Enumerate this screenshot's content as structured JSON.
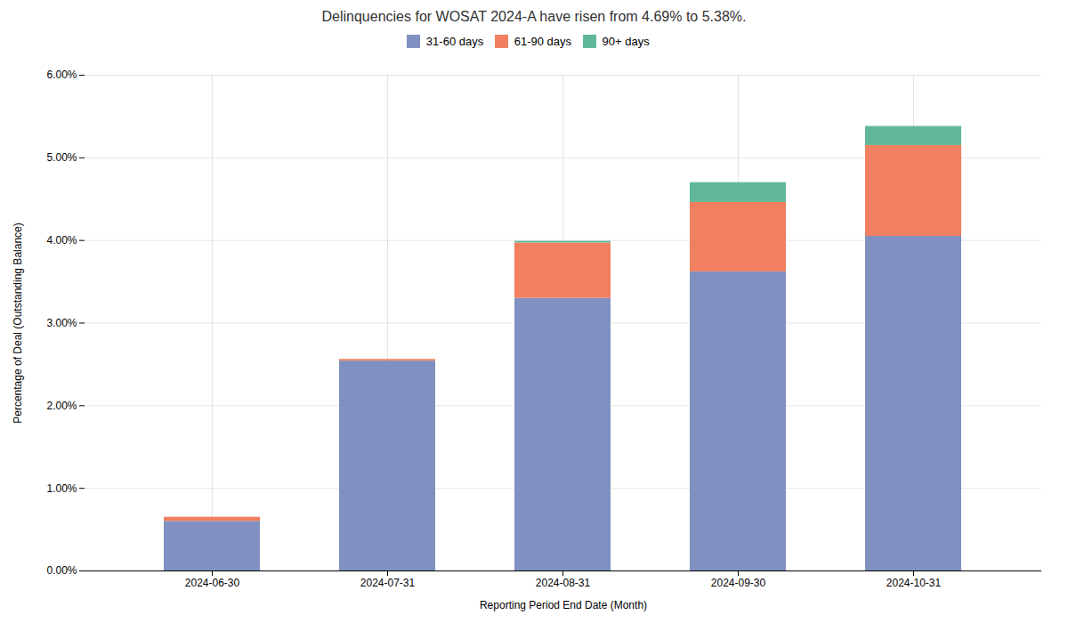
{
  "chart_data": {
    "type": "bar",
    "stacked": true,
    "title": "Delinquencies for WOSAT 2024-A have risen from 4.69% to 5.38%.",
    "xlabel": "Reporting Period End Date (Month)",
    "ylabel": "Percentage of Deal (Outstanding Balance)",
    "categories": [
      "2024-06-30",
      "2024-07-31",
      "2024-08-31",
      "2024-09-30",
      "2024-10-31"
    ],
    "series": [
      {
        "name": "31-60 days",
        "color": "#8090C0",
        "values": [
          0.006,
          0.0254,
          0.033,
          0.0362,
          0.0405
        ]
      },
      {
        "name": "61-90 days",
        "color": "#F08060",
        "values": [
          0.0005,
          0.0002,
          0.0067,
          0.0084,
          0.011
        ]
      },
      {
        "name": "90+ days",
        "color": "#60B898",
        "values": [
          0.0,
          0.0,
          0.0002,
          0.0024,
          0.0023
        ]
      }
    ],
    "ylim": [
      0,
      0.06
    ],
    "yticks": [
      {
        "value": 0.0,
        "label": "0.00%"
      },
      {
        "value": 0.01,
        "label": "1.00%"
      },
      {
        "value": 0.02,
        "label": "2.00%"
      },
      {
        "value": 0.03,
        "label": "3.00%"
      },
      {
        "value": 0.04,
        "label": "4.00%"
      },
      {
        "value": 0.05,
        "label": "5.00%"
      },
      {
        "value": 0.06,
        "label": "6.00%"
      }
    ],
    "grid": true,
    "legend": "top"
  }
}
